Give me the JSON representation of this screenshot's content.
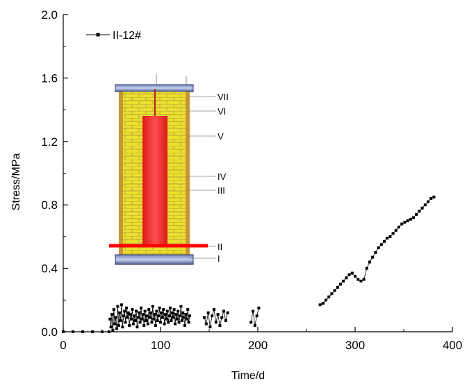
{
  "chart_data": {
    "type": "scatter",
    "xlabel": "Time/d",
    "ylabel": "Stress/MPa",
    "xlim": [
      0,
      400
    ],
    "ylim": [
      0,
      2.0
    ],
    "x_ticks": [
      0,
      100,
      200,
      300,
      400
    ],
    "y_ticks": [
      0.0,
      0.4,
      0.8,
      1.2,
      1.6,
      2.0
    ],
    "x_tick_labels": [
      "0",
      "100",
      "200",
      "300",
      "400"
    ],
    "y_tick_labels": [
      "0.0",
      "0.4",
      "0.8",
      "1.2",
      "1.6",
      "2.0"
    ],
    "legend_position": "top-left",
    "grid": false,
    "series": [
      {
        "name": "II-12#",
        "marker": "square",
        "line_style": "solid",
        "color": "#000000",
        "segments": [
          {
            "x": [
              0,
              10,
              20,
              30,
              40,
              47
            ],
            "y": [
              0.0,
              0.0,
              0.0,
              0.0,
              0.0,
              0.0
            ]
          },
          {
            "x": [
              48,
              49,
              50,
              51,
              52,
              53,
              54,
              55,
              56,
              57,
              58,
              59,
              60,
              61,
              62,
              63,
              64,
              65,
              66,
              67,
              68,
              69,
              70,
              71,
              72,
              73,
              74,
              75,
              76,
              77,
              78,
              79,
              80,
              81,
              82,
              83,
              84,
              85,
              86,
              87,
              88,
              89,
              90,
              91,
              92,
              93,
              94,
              95,
              96,
              97,
              98,
              99,
              100,
              101,
              102,
              103,
              104,
              105,
              106,
              107,
              108,
              109,
              110,
              111,
              112,
              113,
              114,
              115,
              116,
              117,
              118,
              119,
              120,
              121,
              122,
              123,
              124,
              125,
              126,
              127,
              128,
              129,
              130
            ],
            "y": [
              0.08,
              0.03,
              0.11,
              0.01,
              0.14,
              0.05,
              0.09,
              0.02,
              0.16,
              0.04,
              0.12,
              0.07,
              0.17,
              0.03,
              0.1,
              0.13,
              0.06,
              0.15,
              0.09,
              0.12,
              0.04,
              0.11,
              0.08,
              0.14,
              0.05,
              0.1,
              0.07,
              0.13,
              0.03,
              0.09,
              0.12,
              0.06,
              0.15,
              0.08,
              0.11,
              0.04,
              0.13,
              0.07,
              0.1,
              0.05,
              0.14,
              0.09,
              0.12,
              0.06,
              0.16,
              0.08,
              0.11,
              0.04,
              0.13,
              0.07,
              0.1,
              0.15,
              0.06,
              0.12,
              0.09,
              0.14,
              0.05,
              0.11,
              0.08,
              0.13,
              0.06,
              0.1,
              0.15,
              0.07,
              0.12,
              0.09,
              0.14,
              0.05,
              0.11,
              0.08,
              0.13,
              0.06,
              0.1,
              0.16,
              0.07,
              0.12,
              0.09,
              0.04,
              0.11,
              0.08,
              0.14,
              0.06,
              0.1
            ]
          },
          {
            "x": [
              145,
              147,
              149,
              151,
              153,
              155,
              157,
              159,
              161,
              163,
              165,
              167,
              169
            ],
            "y": [
              0.09,
              0.05,
              0.12,
              0.03,
              0.1,
              0.14,
              0.06,
              0.11,
              0.04,
              0.09,
              0.13,
              0.07,
              0.12
            ]
          },
          {
            "x": [
              193,
              195,
              197,
              199,
              201
            ],
            "y": [
              0.06,
              0.13,
              0.04,
              0.1,
              0.15
            ]
          },
          {
            "x": [
              264,
              267,
              270,
              273,
              276,
              279,
              282,
              285,
              288,
              291,
              294,
              297,
              300,
              303,
              306,
              309,
              312,
              315,
              318,
              321,
              324,
              327,
              330,
              333,
              336,
              339,
              342,
              345,
              348,
              351,
              354,
              357,
              360,
              363,
              366,
              369,
              372,
              375,
              378,
              381
            ],
            "y": [
              0.17,
              0.18,
              0.2,
              0.22,
              0.24,
              0.26,
              0.28,
              0.3,
              0.32,
              0.34,
              0.36,
              0.37,
              0.35,
              0.33,
              0.32,
              0.33,
              0.4,
              0.44,
              0.47,
              0.5,
              0.53,
              0.55,
              0.57,
              0.59,
              0.6,
              0.62,
              0.64,
              0.66,
              0.68,
              0.69,
              0.7,
              0.71,
              0.72,
              0.74,
              0.76,
              0.78,
              0.8,
              0.82,
              0.84,
              0.85
            ]
          }
        ]
      }
    ],
    "inset": {
      "section_labels": [
        "VII",
        "VI",
        "V",
        "IV",
        "III",
        "II",
        "I"
      ],
      "colors": {
        "lining": "#e6e02c",
        "core": "#ff2020",
        "marker_line": "#ff0000",
        "cap": "#3a4a7a",
        "casing": "#b8872a"
      }
    }
  }
}
